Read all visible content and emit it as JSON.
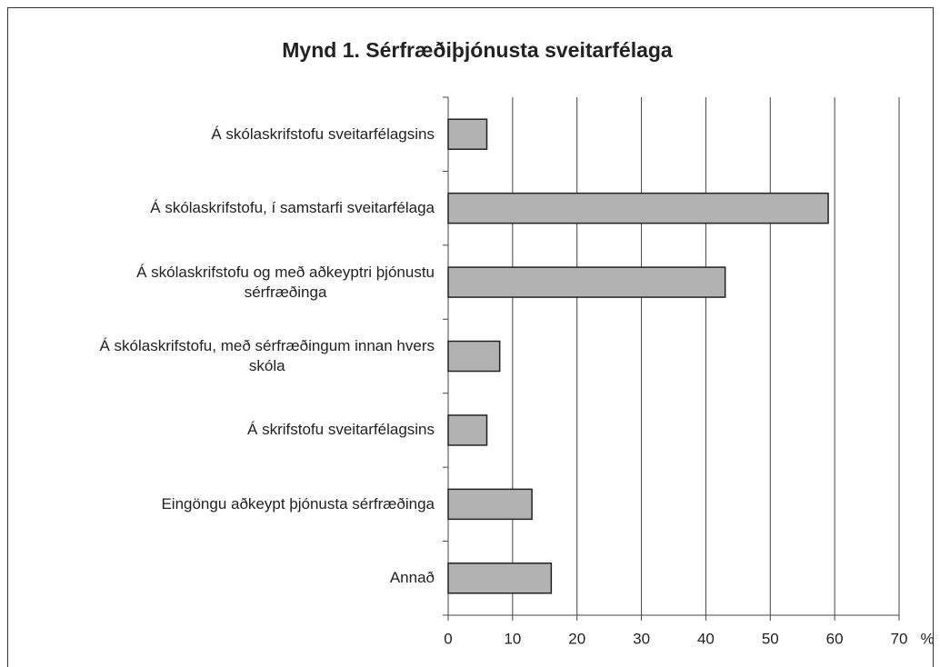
{
  "chart_data": {
    "type": "bar",
    "orientation": "horizontal",
    "title": "Mynd 1. Sérfræðiþjónusta sveitarfélaga",
    "x_label": "%",
    "categories": [
      "Á skólaskrifstofu sveitarfélagsins",
      "Á skólaskrifstofu, í samstarfi sveitarfélaga",
      "Á skólaskrifstofu og með aðkeyptri þjónustu\nsérfræðinga",
      "Á skólaskrifstofu, með sérfræðingum innan hvers\nskóla",
      "Á skrifstofu sveitarfélagsins",
      "Eingöngu aðkeypt þjónusta sérfræðinga",
      "Annað"
    ],
    "values": [
      6,
      59,
      43,
      8,
      6,
      13,
      16
    ],
    "color": "#b2b2b2",
    "xlim": [
      0,
      70
    ],
    "xticks": [
      0,
      10,
      20,
      30,
      40,
      50,
      60,
      70
    ],
    "grid": true
  }
}
